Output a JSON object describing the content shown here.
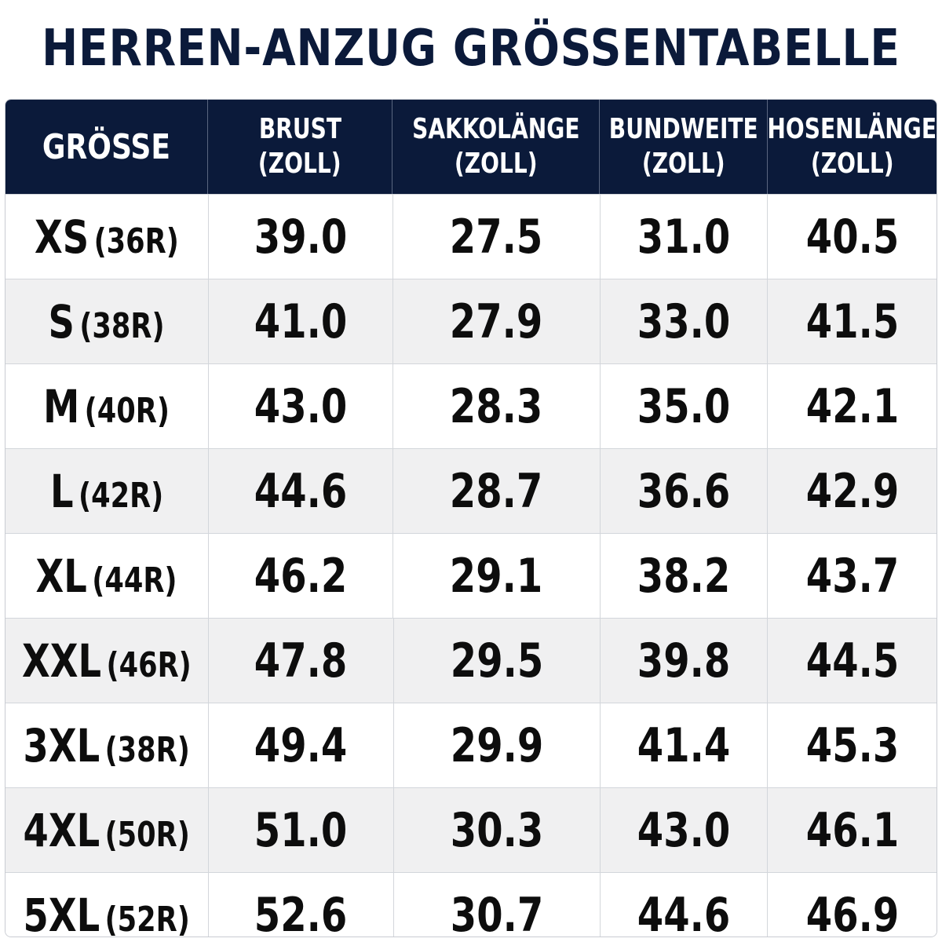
{
  "title": "HERREN-ANZUG GRÖSSENTABELLE",
  "headers": {
    "size": "GRÖSSE",
    "chest": [
      "BRUST",
      "(ZOLL)"
    ],
    "jacket_length": [
      "SAKKOLÄNGE",
      "(ZOLL)"
    ],
    "waist": [
      "BUNDWEITE",
      "(ZOLL)"
    ],
    "trouser_length": [
      "HOSENLÄNGE",
      "(ZOLL)"
    ]
  },
  "rows": [
    {
      "size": "XS",
      "code": "(36R)",
      "chest": "39.0",
      "jacket_length": "27.5",
      "waist": "31.0",
      "trouser_length": "40.5"
    },
    {
      "size": "S",
      "code": "(38R)",
      "chest": "41.0",
      "jacket_length": "27.9",
      "waist": "33.0",
      "trouser_length": "41.5"
    },
    {
      "size": "M",
      "code": "(40R)",
      "chest": "43.0",
      "jacket_length": "28.3",
      "waist": "35.0",
      "trouser_length": "42.1"
    },
    {
      "size": "L",
      "code": "(42R)",
      "chest": "44.6",
      "jacket_length": "28.7",
      "waist": "36.6",
      "trouser_length": "42.9"
    },
    {
      "size": "XL",
      "code": "(44R)",
      "chest": "46.2",
      "jacket_length": "29.1",
      "waist": "38.2",
      "trouser_length": "43.7"
    },
    {
      "size": "XXL",
      "code": "(46R)",
      "chest": "47.8",
      "jacket_length": "29.5",
      "waist": "39.8",
      "trouser_length": "44.5"
    },
    {
      "size": "3XL",
      "code": "(38R)",
      "chest": "49.4",
      "jacket_length": "29.9",
      "waist": "41.4",
      "trouser_length": "45.3"
    },
    {
      "size": "4XL",
      "code": "(50R)",
      "chest": "51.0",
      "jacket_length": "30.3",
      "waist": "43.0",
      "trouser_length": "46.1"
    },
    {
      "size": "5XL",
      "code": "(52R)",
      "chest": "52.6",
      "jacket_length": "30.7",
      "waist": "44.6",
      "trouser_length": "46.9"
    }
  ],
  "colors": {
    "header_background": "#0b1a3a",
    "header_text": "#ffffff",
    "title_text": "#0b1a3a",
    "body_text": "#0d0d0d",
    "row_alt": "#f0f0f1",
    "row_plain": "#ffffff"
  }
}
